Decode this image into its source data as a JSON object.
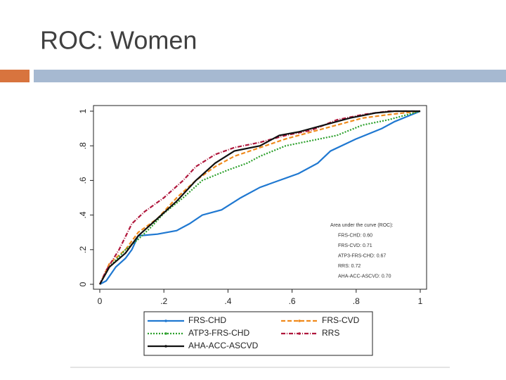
{
  "slide_title": "ROC: Women",
  "chart_data": {
    "type": "line",
    "xlim": [
      0,
      1
    ],
    "ylim": [
      0,
      1
    ],
    "xticks": [
      0,
      {
        "value": 0.2,
        "label": ".2"
      },
      {
        "value": 0.4,
        "label": ".4"
      },
      {
        "value": 0.6,
        "label": ".6"
      },
      {
        "value": 0.8,
        "label": ".8"
      },
      1
    ],
    "yticks": [
      0,
      {
        "value": 0.2,
        "label": ".2"
      },
      {
        "value": 0.4,
        "label": ".4"
      },
      {
        "value": 0.6,
        "label": ".6"
      },
      {
        "value": 0.8,
        "label": ".8"
      },
      1
    ],
    "grid": false,
    "annotations": [
      "Area under the curve (ROC):",
      "FRS-CHD: 0.60",
      "FRS-CVD: 0.71",
      "ATP3-FRS-CHD: 0.67",
      "RRS: 0.72",
      "AHA-ACC-ASCVD: 0.70"
    ],
    "series": [
      {
        "name": "FRS-CHD",
        "color": "#1f78d1",
        "linestyle": "solid",
        "x": [
          0,
          0.02,
          0.05,
          0.08,
          0.1,
          0.12,
          0.18,
          0.24,
          0.28,
          0.32,
          0.38,
          0.44,
          0.5,
          0.56,
          0.62,
          0.68,
          0.72,
          0.8,
          0.88,
          0.92,
          0.96,
          1
        ],
        "values": [
          0,
          0.02,
          0.1,
          0.15,
          0.2,
          0.28,
          0.29,
          0.31,
          0.35,
          0.4,
          0.43,
          0.5,
          0.56,
          0.6,
          0.64,
          0.7,
          0.77,
          0.84,
          0.9,
          0.94,
          0.97,
          1
        ]
      },
      {
        "name": "FRS-CVD",
        "color": "#f08a1c",
        "linestyle": "dashed",
        "x": [
          0,
          0.03,
          0.08,
          0.12,
          0.18,
          0.24,
          0.3,
          0.36,
          0.42,
          0.5,
          0.58,
          0.66,
          0.74,
          0.82,
          0.9,
          1
        ],
        "values": [
          0,
          0.12,
          0.2,
          0.3,
          0.38,
          0.5,
          0.6,
          0.68,
          0.74,
          0.79,
          0.84,
          0.88,
          0.92,
          0.96,
          0.98,
          1
        ]
      },
      {
        "name": "ATP3-FRS-CHD",
        "color": "#2ca02c",
        "linestyle": "dotted",
        "x": [
          0,
          0.03,
          0.08,
          0.12,
          0.16,
          0.2,
          0.26,
          0.32,
          0.4,
          0.46,
          0.5,
          0.58,
          0.66,
          0.74,
          0.82,
          0.9,
          1
        ],
        "values": [
          0,
          0.1,
          0.2,
          0.26,
          0.33,
          0.41,
          0.5,
          0.6,
          0.66,
          0.7,
          0.74,
          0.8,
          0.83,
          0.86,
          0.92,
          0.95,
          1
        ]
      },
      {
        "name": "RRS",
        "color": "#b0183d",
        "linestyle": "dash-dot",
        "x": [
          0,
          0.02,
          0.06,
          0.1,
          0.14,
          0.2,
          0.26,
          0.3,
          0.36,
          0.42,
          0.5,
          0.58,
          0.66,
          0.74,
          0.82,
          0.9,
          1
        ],
        "values": [
          0,
          0.08,
          0.2,
          0.35,
          0.42,
          0.5,
          0.6,
          0.68,
          0.75,
          0.79,
          0.82,
          0.86,
          0.89,
          0.95,
          0.98,
          1,
          1
        ]
      },
      {
        "name": "AHA-ACC-ASCVD",
        "color": "#111111",
        "linestyle": "solid",
        "x": [
          0,
          0.03,
          0.08,
          0.12,
          0.18,
          0.24,
          0.3,
          0.36,
          0.42,
          0.5,
          0.56,
          0.62,
          0.7,
          0.78,
          0.86,
          0.92,
          1
        ],
        "values": [
          0,
          0.1,
          0.18,
          0.28,
          0.38,
          0.48,
          0.6,
          0.7,
          0.77,
          0.8,
          0.86,
          0.88,
          0.92,
          0.96,
          0.99,
          1,
          1
        ]
      }
    ]
  }
}
